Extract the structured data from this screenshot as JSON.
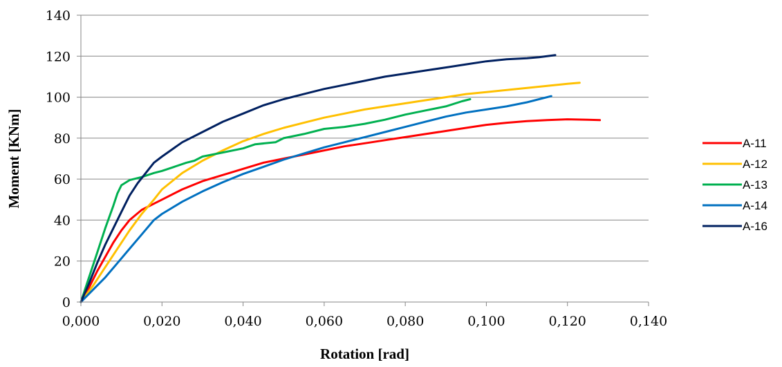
{
  "chart_data": {
    "type": "line",
    "title": "",
    "xlabel": "Rotation [rad]",
    "ylabel": "Moment [KNm]",
    "xlim": [
      0,
      0.14
    ],
    "ylim": [
      0,
      140
    ],
    "x_ticks": [
      0,
      0.02,
      0.04,
      0.06,
      0.08,
      0.1,
      0.12,
      0.14
    ],
    "x_tick_labels": [
      "0,000",
      "0,020",
      "0,040",
      "0,060",
      "0,080",
      "0,100",
      "0,120",
      "0,140"
    ],
    "y_ticks": [
      0,
      20,
      40,
      60,
      80,
      100,
      120,
      140
    ],
    "y_tick_labels": [
      "0",
      "20",
      "40",
      "60",
      "80",
      "100",
      "120",
      "140"
    ],
    "grid": "horizontal",
    "legend_position": "right",
    "series": [
      {
        "name": "A-11",
        "color": "#ff0000",
        "points": [
          [
            0,
            0
          ],
          [
            0.002,
            7
          ],
          [
            0.004,
            15
          ],
          [
            0.006,
            22
          ],
          [
            0.008,
            29
          ],
          [
            0.01,
            35
          ],
          [
            0.012,
            40
          ],
          [
            0.015,
            45
          ],
          [
            0.018,
            48
          ],
          [
            0.02,
            50
          ],
          [
            0.025,
            55
          ],
          [
            0.03,
            59
          ],
          [
            0.035,
            62
          ],
          [
            0.04,
            65
          ],
          [
            0.045,
            68
          ],
          [
            0.05,
            70
          ],
          [
            0.055,
            72
          ],
          [
            0.06,
            74
          ],
          [
            0.065,
            76
          ],
          [
            0.07,
            77.5
          ],
          [
            0.075,
            79
          ],
          [
            0.08,
            80.5
          ],
          [
            0.085,
            82
          ],
          [
            0.09,
            83.5
          ],
          [
            0.095,
            85
          ],
          [
            0.1,
            86.5
          ],
          [
            0.105,
            87.5
          ],
          [
            0.11,
            88.3
          ],
          [
            0.115,
            88.8
          ],
          [
            0.12,
            89.2
          ],
          [
            0.125,
            89
          ],
          [
            0.128,
            88.8
          ]
        ]
      },
      {
        "name": "A-12",
        "color": "#ffc000",
        "points": [
          [
            0,
            0
          ],
          [
            0.003,
            8
          ],
          [
            0.006,
            17
          ],
          [
            0.009,
            26
          ],
          [
            0.012,
            35
          ],
          [
            0.015,
            43
          ],
          [
            0.018,
            50
          ],
          [
            0.02,
            55
          ],
          [
            0.025,
            63
          ],
          [
            0.03,
            69
          ],
          [
            0.035,
            74
          ],
          [
            0.04,
            78.5
          ],
          [
            0.045,
            82
          ],
          [
            0.05,
            85
          ],
          [
            0.055,
            87.5
          ],
          [
            0.06,
            90
          ],
          [
            0.065,
            92
          ],
          [
            0.07,
            94
          ],
          [
            0.075,
            95.5
          ],
          [
            0.08,
            97
          ],
          [
            0.085,
            98.5
          ],
          [
            0.09,
            100
          ],
          [
            0.095,
            101.5
          ],
          [
            0.1,
            102.5
          ],
          [
            0.105,
            103.5
          ],
          [
            0.11,
            104.5
          ],
          [
            0.115,
            105.5
          ],
          [
            0.12,
            106.5
          ],
          [
            0.123,
            107
          ]
        ]
      },
      {
        "name": "A-13",
        "color": "#00b050",
        "points": [
          [
            0,
            0
          ],
          [
            0.002,
            12
          ],
          [
            0.004,
            24
          ],
          [
            0.006,
            36
          ],
          [
            0.008,
            47
          ],
          [
            0.009,
            53
          ],
          [
            0.01,
            57
          ],
          [
            0.012,
            59.5
          ],
          [
            0.015,
            61
          ],
          [
            0.018,
            63
          ],
          [
            0.02,
            64
          ],
          [
            0.023,
            66
          ],
          [
            0.026,
            68
          ],
          [
            0.028,
            69
          ],
          [
            0.03,
            71
          ],
          [
            0.035,
            73
          ],
          [
            0.04,
            75
          ],
          [
            0.043,
            77
          ],
          [
            0.048,
            78
          ],
          [
            0.05,
            80
          ],
          [
            0.055,
            82
          ],
          [
            0.06,
            84.5
          ],
          [
            0.065,
            85.5
          ],
          [
            0.07,
            87
          ],
          [
            0.075,
            89
          ],
          [
            0.08,
            91.5
          ],
          [
            0.085,
            93.5
          ],
          [
            0.09,
            95.5
          ],
          [
            0.094,
            98
          ],
          [
            0.096,
            99
          ]
        ]
      },
      {
        "name": "A-14",
        "color": "#0070c0",
        "points": [
          [
            0,
            0
          ],
          [
            0.003,
            6
          ],
          [
            0.006,
            12
          ],
          [
            0.009,
            19
          ],
          [
            0.012,
            26
          ],
          [
            0.015,
            33
          ],
          [
            0.018,
            40
          ],
          [
            0.02,
            43
          ],
          [
            0.025,
            49
          ],
          [
            0.03,
            54
          ],
          [
            0.035,
            58.5
          ],
          [
            0.04,
            62.5
          ],
          [
            0.045,
            66
          ],
          [
            0.05,
            69.5
          ],
          [
            0.055,
            72.5
          ],
          [
            0.06,
            75.5
          ],
          [
            0.065,
            78
          ],
          [
            0.07,
            80.5
          ],
          [
            0.075,
            83
          ],
          [
            0.08,
            85.5
          ],
          [
            0.085,
            88
          ],
          [
            0.09,
            90.5
          ],
          [
            0.095,
            92.5
          ],
          [
            0.1,
            94
          ],
          [
            0.105,
            95.5
          ],
          [
            0.11,
            97.5
          ],
          [
            0.113,
            99
          ],
          [
            0.116,
            100.5
          ]
        ]
      },
      {
        "name": "A-16",
        "color": "#002060",
        "points": [
          [
            0,
            0
          ],
          [
            0.002,
            9
          ],
          [
            0.004,
            19
          ],
          [
            0.006,
            28
          ],
          [
            0.008,
            36
          ],
          [
            0.01,
            44
          ],
          [
            0.012,
            52
          ],
          [
            0.014,
            58
          ],
          [
            0.016,
            63
          ],
          [
            0.018,
            68
          ],
          [
            0.02,
            71
          ],
          [
            0.025,
            78
          ],
          [
            0.03,
            83
          ],
          [
            0.035,
            88
          ],
          [
            0.04,
            92
          ],
          [
            0.045,
            96
          ],
          [
            0.05,
            99
          ],
          [
            0.055,
            101.5
          ],
          [
            0.06,
            104
          ],
          [
            0.065,
            106
          ],
          [
            0.07,
            108
          ],
          [
            0.075,
            110
          ],
          [
            0.08,
            111.5
          ],
          [
            0.085,
            113
          ],
          [
            0.09,
            114.5
          ],
          [
            0.095,
            116
          ],
          [
            0.1,
            117.5
          ],
          [
            0.105,
            118.5
          ],
          [
            0.11,
            119
          ],
          [
            0.113,
            119.5
          ],
          [
            0.117,
            120.5
          ]
        ]
      }
    ]
  }
}
